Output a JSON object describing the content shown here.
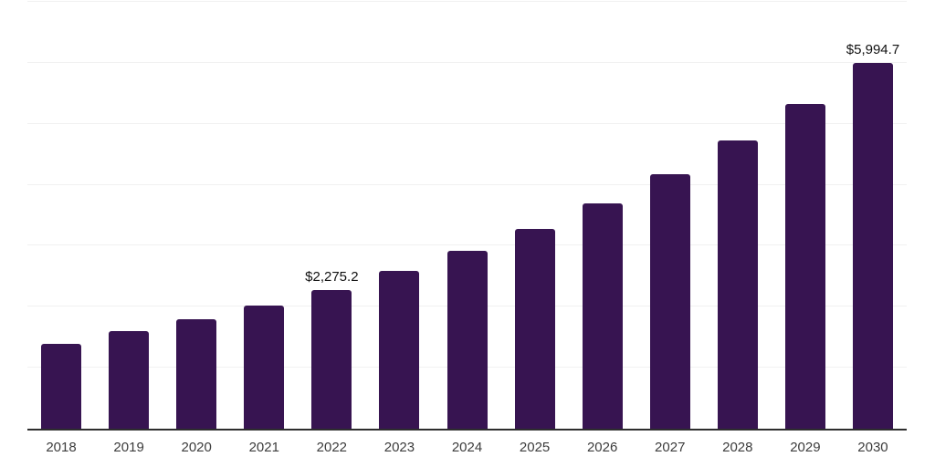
{
  "chart_data": {
    "type": "bar",
    "title": "",
    "xlabel": "",
    "ylabel": "",
    "categories": [
      "2018",
      "2019",
      "2020",
      "2021",
      "2022",
      "2023",
      "2024",
      "2025",
      "2026",
      "2027",
      "2028",
      "2029",
      "2030"
    ],
    "values": [
      1390,
      1600,
      1795,
      2020,
      2275.2,
      2590,
      2915,
      3275,
      3695,
      4175,
      4725,
      5325,
      5994.7
    ],
    "data_labels": [
      "",
      "",
      "",
      "",
      "$2,275.2",
      "",
      "",
      "",
      "",
      "",
      "",
      "",
      "$5,994.7"
    ],
    "ylim": [
      0,
      7000
    ],
    "gridline_step": 1000,
    "grid": "horizontal",
    "legend": "none",
    "colors": {
      "bar": "#371451",
      "gridline": "#f1f1f1",
      "axis_line": "#2e2e2e",
      "data_label_text": "#111111",
      "tick_label_text": "#3c3c3c",
      "background": "#ffffff"
    }
  }
}
